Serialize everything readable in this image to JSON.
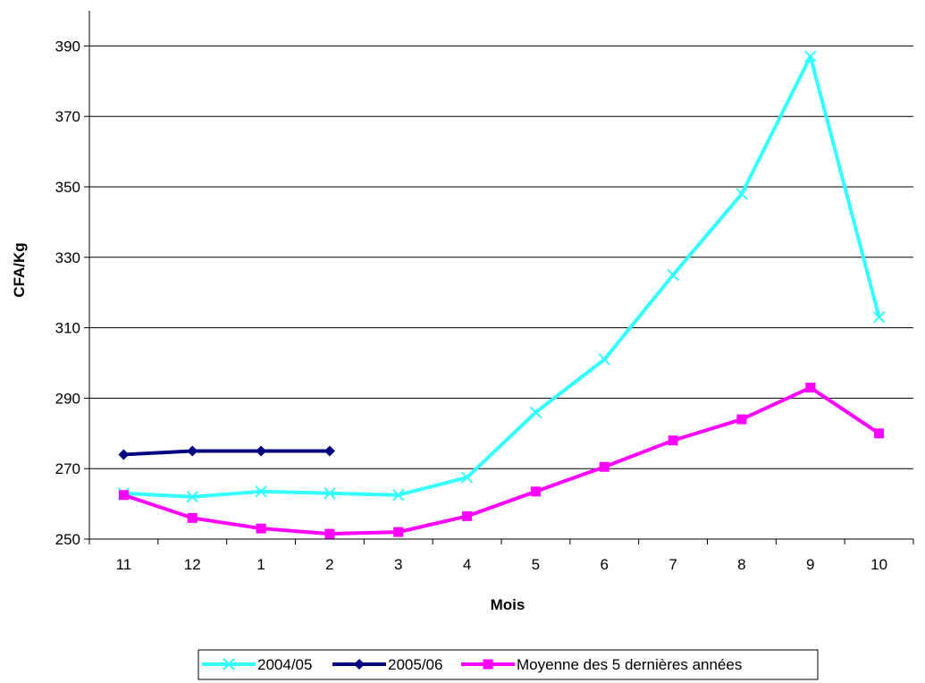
{
  "chart_data": {
    "type": "line",
    "title": "",
    "xlabel": "Mois",
    "ylabel": "CFA/Kg",
    "categories": [
      "11",
      "12",
      "1",
      "2",
      "3",
      "4",
      "5",
      "6",
      "7",
      "8",
      "9",
      "10"
    ],
    "ylim": [
      250,
      400
    ],
    "yticks": [
      250,
      270,
      290,
      310,
      330,
      350,
      370,
      390
    ],
    "grid": "horizontal",
    "legend_position": "bottom",
    "series": [
      {
        "name": "2004/05",
        "color": "#33FFFF",
        "marker": "x",
        "values": [
          263,
          262,
          263.5,
          263,
          262.5,
          267.5,
          286,
          301,
          325,
          348,
          387,
          313
        ]
      },
      {
        "name": "2005/06",
        "color": "#000080",
        "marker": "diamond",
        "values": [
          274,
          275,
          275,
          275,
          null,
          null,
          null,
          null,
          null,
          null,
          null,
          null
        ]
      },
      {
        "name": "Moyenne des 5 dernières années",
        "color": "#FF00FF",
        "marker": "square",
        "values": [
          262.5,
          256,
          253,
          251.5,
          252,
          256.5,
          263.5,
          270.5,
          278,
          284,
          293,
          280
        ]
      }
    ]
  }
}
